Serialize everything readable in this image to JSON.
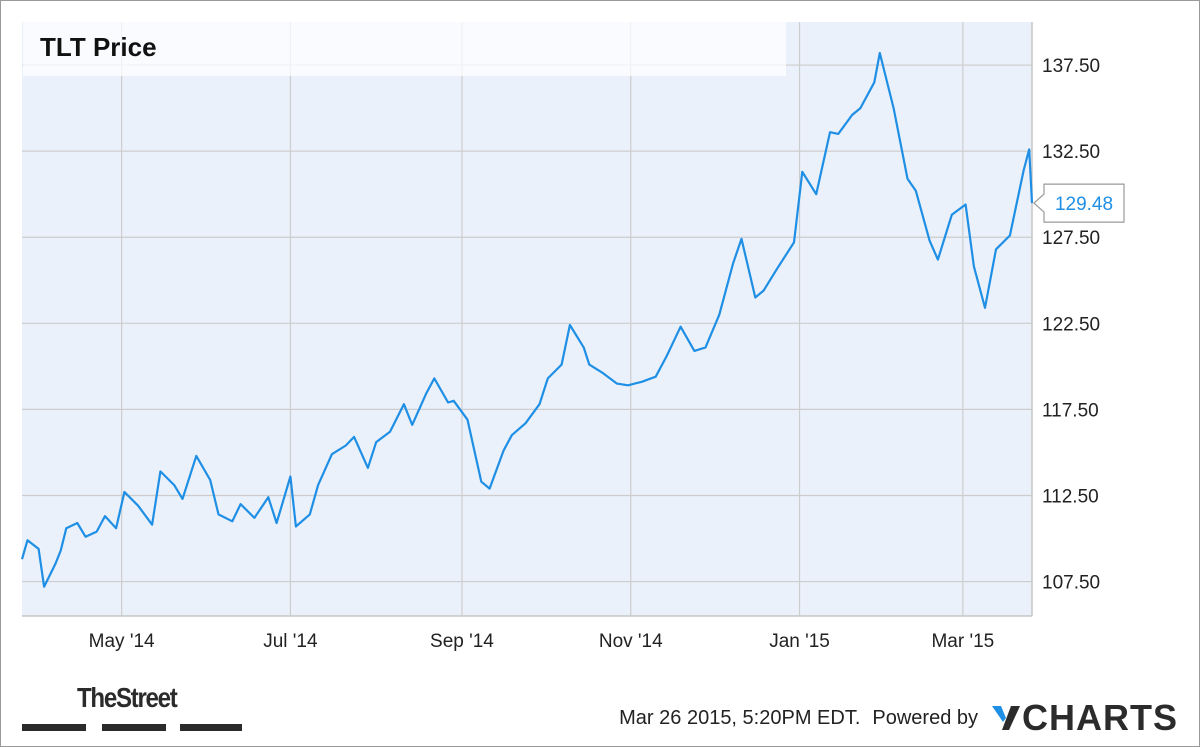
{
  "chart_data": {
    "type": "line",
    "title": "TLT Price",
    "x_tick_labels": [
      "May '14",
      "Jul '14",
      "Sep '14",
      "Nov '14",
      "Jan '15",
      "Mar '15"
    ],
    "y_tick_labels": [
      "107.50",
      "112.50",
      "117.50",
      "122.50",
      "127.50",
      "132.50",
      "137.50"
    ],
    "ylim": [
      105.5,
      140.0
    ],
    "last_value_label": "129.48",
    "grid": true,
    "series": [
      {
        "color": "#1f8fe5",
        "x": [
          "2014-03-26",
          "2014-03-28",
          "2014-04-01",
          "2014-04-03",
          "2014-04-07",
          "2014-04-09",
          "2014-04-11",
          "2014-04-15",
          "2014-04-18",
          "2014-04-22",
          "2014-04-25",
          "2014-04-29",
          "2014-05-02",
          "2014-05-07",
          "2014-05-12",
          "2014-05-15",
          "2014-05-20",
          "2014-05-23",
          "2014-05-28",
          "2014-06-02",
          "2014-06-05",
          "2014-06-10",
          "2014-06-13",
          "2014-06-18",
          "2014-06-23",
          "2014-06-26",
          "2014-07-01",
          "2014-07-03",
          "2014-07-08",
          "2014-07-11",
          "2014-07-16",
          "2014-07-21",
          "2014-07-24",
          "2014-07-29",
          "2014-08-01",
          "2014-08-06",
          "2014-08-11",
          "2014-08-14",
          "2014-08-19",
          "2014-08-22",
          "2014-08-27",
          "2014-08-29",
          "2014-09-03",
          "2014-09-08",
          "2014-09-11",
          "2014-09-16",
          "2014-09-19",
          "2014-09-24",
          "2014-09-29",
          "2014-10-02",
          "2014-10-07",
          "2014-10-10",
          "2014-10-15",
          "2014-10-17",
          "2014-10-22",
          "2014-10-27",
          "2014-10-31",
          "2014-11-05",
          "2014-11-10",
          "2014-11-14",
          "2014-11-19",
          "2014-11-24",
          "2014-11-28",
          "2014-12-03",
          "2014-12-08",
          "2014-12-11",
          "2014-12-16",
          "2014-12-19",
          "2014-12-24",
          "2014-12-30",
          "2015-01-02",
          "2015-01-07",
          "2015-01-12",
          "2015-01-15",
          "2015-01-20",
          "2015-01-23",
          "2015-01-28",
          "2015-01-30",
          "2015-02-04",
          "2015-02-09",
          "2015-02-12",
          "2015-02-17",
          "2015-02-20",
          "2015-02-25",
          "2015-03-02",
          "2015-03-05",
          "2015-03-09",
          "2015-03-13",
          "2015-03-18",
          "2015-03-23",
          "2015-03-25",
          "2015-03-26"
        ],
        "y": [
          108.8,
          109.9,
          109.4,
          107.2,
          108.5,
          109.3,
          110.6,
          110.9,
          110.1,
          110.4,
          111.3,
          110.6,
          112.7,
          111.9,
          110.8,
          113.9,
          113.1,
          112.3,
          114.8,
          113.4,
          111.4,
          111.0,
          112.0,
          111.2,
          112.4,
          110.9,
          113.6,
          110.7,
          111.4,
          113.1,
          114.9,
          115.4,
          115.9,
          114.1,
          115.6,
          116.2,
          117.8,
          116.6,
          118.4,
          119.3,
          117.9,
          118.0,
          116.9,
          113.3,
          112.9,
          115.1,
          116.0,
          116.7,
          117.8,
          119.3,
          120.1,
          122.4,
          121.1,
          120.1,
          119.6,
          119.0,
          118.9,
          119.1,
          119.4,
          120.6,
          122.3,
          120.9,
          121.1,
          123.0,
          126.0,
          127.4,
          124.0,
          124.4,
          125.7,
          127.2,
          131.3,
          130.0,
          133.6,
          133.5,
          134.6,
          135.0,
          136.5,
          138.2,
          135.0,
          130.9,
          130.2,
          127.3,
          126.2,
          128.8,
          129.4,
          125.8,
          123.4,
          126.8,
          127.6,
          131.4,
          132.6,
          129.48
        ]
      }
    ]
  }
}
